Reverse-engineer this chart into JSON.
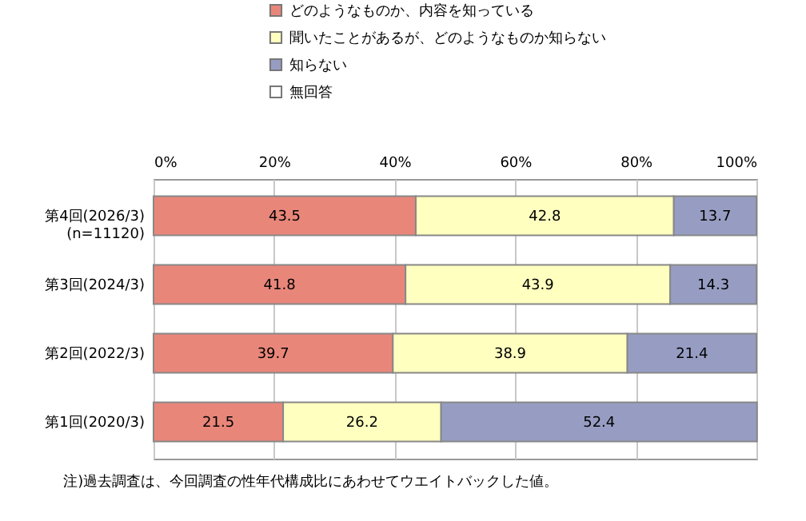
{
  "chart_data": {
    "type": "bar",
    "orientation": "horizontal",
    "stacked": true,
    "data_labels": true,
    "grid": "x",
    "legend": "top",
    "categories": [
      "第4回(2026/3)\n(n=11120)",
      "第3回(2024/3)",
      "第2回(2022/3)",
      "第1回(2020/3)"
    ],
    "series": [
      {
        "name": "どのようなものか、内容を知っている",
        "color": "#e9867a",
        "values": [
          43.5,
          41.8,
          39.7,
          21.5
        ]
      },
      {
        "name": "聞いたことがあるが、どのようなものか知らない",
        "color": "#ffffc0",
        "values": [
          42.8,
          43.9,
          38.9,
          26.2
        ]
      },
      {
        "name": "知らない",
        "color": "#979dc2",
        "values": [
          13.7,
          14.3,
          21.4,
          52.4
        ]
      },
      {
        "name": "無回答",
        "color": "#ffffff",
        "values": [
          null,
          null,
          null,
          null
        ]
      }
    ],
    "xlim": [
      0,
      100
    ],
    "xticks": [
      {
        "value": 0,
        "label": "0%"
      },
      {
        "value": 20,
        "label": "20%"
      },
      {
        "value": 40,
        "label": "40%"
      },
      {
        "value": 60,
        "label": "60%"
      },
      {
        "value": 80,
        "label": "80%"
      },
      {
        "value": 100,
        "label": "100%"
      }
    ],
    "annotations": [
      "注)過去調査は、今回調査の性年代構成比にあわせてウエイトバックした値。"
    ]
  }
}
